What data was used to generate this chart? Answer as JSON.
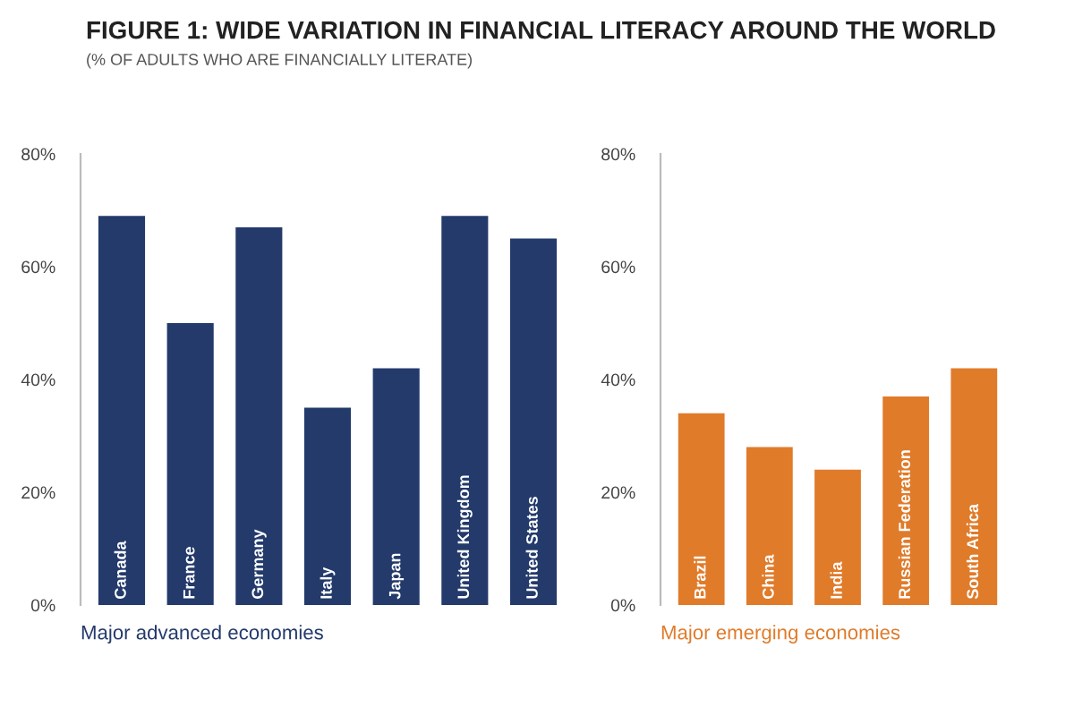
{
  "chart_data": [
    {
      "type": "bar",
      "title": "FIGURE 1: WIDE VARIATION IN FINANCIAL LITERACY AROUND THE WORLD",
      "subtitle": "(% OF ADULTS WHO ARE FINANCIALLY LITERATE)",
      "xlabel": "Major advanced economies",
      "categories": [
        "Canada",
        "France",
        "Germany",
        "Italy",
        "Japan",
        "United Kingdom",
        "United States"
      ],
      "series": [
        {
          "color": "#233a6b",
          "values": [
            69,
            50,
            67,
            35,
            42,
            69,
            65
          ]
        }
      ],
      "ylim": [
        0,
        80
      ],
      "yticks": [
        {
          "value": 0,
          "label": "0%"
        },
        {
          "value": 20,
          "label": "20%"
        },
        {
          "value": 40,
          "label": "40%"
        },
        {
          "value": 60,
          "label": "60%"
        },
        {
          "value": 80,
          "label": "80%"
        }
      ],
      "grid": false
    },
    {
      "type": "bar",
      "xlabel": "Major emerging economies",
      "categories": [
        "Brazil",
        "China",
        "India",
        "Russian Federation",
        "South Africa"
      ],
      "series": [
        {
          "color": "#e07b2a",
          "values": [
            34,
            28,
            24,
            37,
            42
          ]
        }
      ],
      "ylim": [
        0,
        80
      ],
      "yticks": [
        {
          "value": 0,
          "label": "0%"
        },
        {
          "value": 20,
          "label": "20%"
        },
        {
          "value": 40,
          "label": "40%"
        },
        {
          "value": 60,
          "label": "60%"
        },
        {
          "value": 80,
          "label": "80%"
        }
      ],
      "grid": false
    }
  ]
}
